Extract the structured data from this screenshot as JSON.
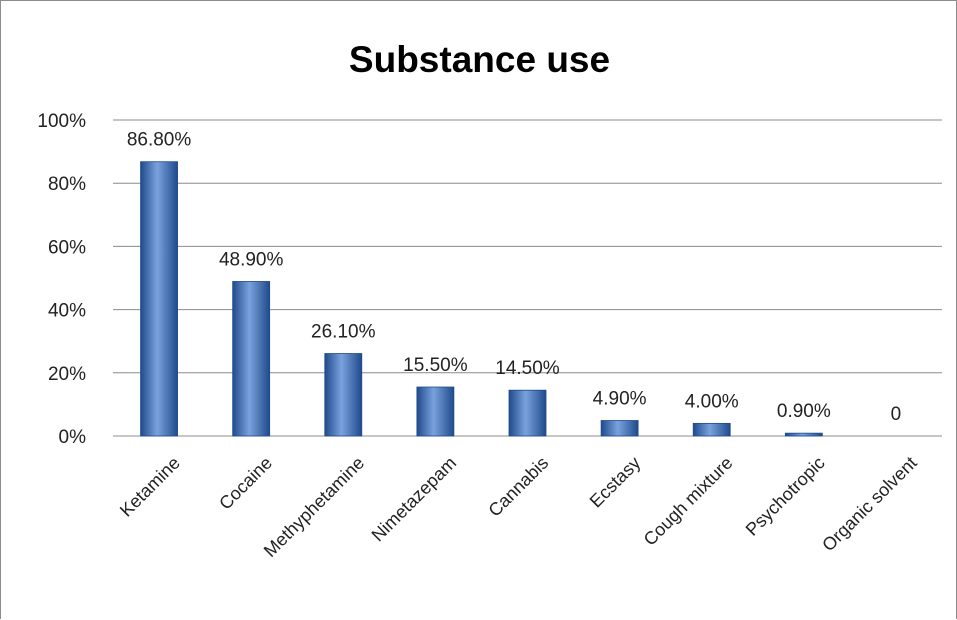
{
  "chart_data": {
    "type": "bar",
    "title": "Substance use",
    "xlabel": "",
    "ylabel": "",
    "categories": [
      "Ketamine",
      "Cocaine",
      "Methyphetamine",
      "Nimetazepam",
      "Cannabis",
      "Ecstasy",
      "Cough mixture",
      "Psychotropic",
      "Organic solvent"
    ],
    "values": [
      86.8,
      48.9,
      26.1,
      15.5,
      14.5,
      4.9,
      4.0,
      0.9,
      0
    ],
    "data_labels": [
      "86.80%",
      "48.90%",
      "26.10%",
      "15.50%",
      "14.50%",
      "4.90%",
      "4.00%",
      "0.90%",
      "0"
    ],
    "ylim": [
      0,
      100
    ],
    "yticks": [
      0,
      20,
      40,
      60,
      80,
      100
    ],
    "ytick_labels": [
      "0%",
      "20%",
      "40%",
      "60%",
      "80%",
      "100%"
    ],
    "grid": true,
    "legend": "none",
    "colors": {
      "bar": "#3d6fbd",
      "bar_dark": "#1f4a8c",
      "bar_light": "#7aa2dd",
      "grid": "#8c8c8c"
    }
  }
}
